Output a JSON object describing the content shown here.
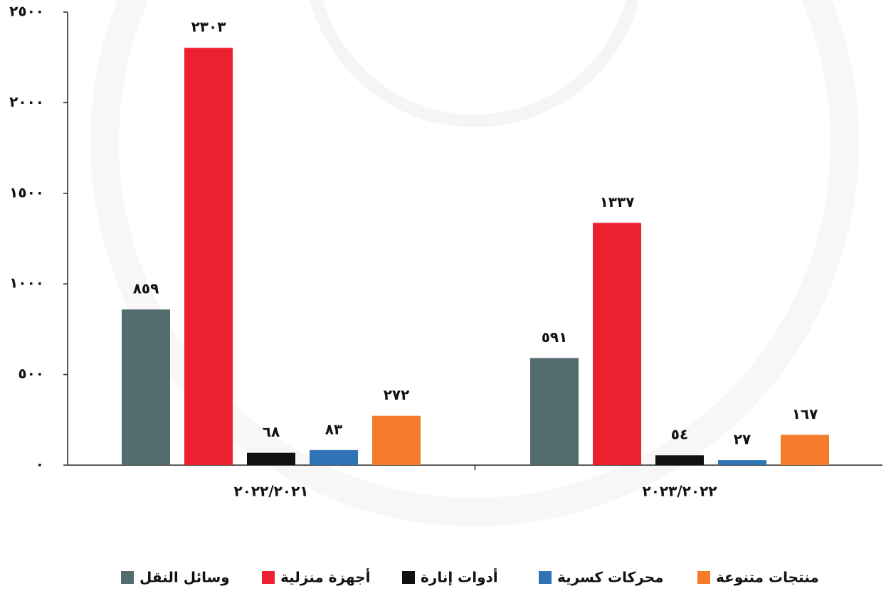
{
  "chart_data": {
    "type": "bar",
    "categories": [
      "٢٠٢٢/٢٠٢١",
      "٢٠٢٣/٢٠٢٢"
    ],
    "series": [
      {
        "name": "وسائل النقل",
        "color": "#546b6e",
        "values": [
          859,
          591
        ],
        "value_labels": [
          "٨٥٩",
          "٥٩١"
        ]
      },
      {
        "name": "أجهزة منزلية",
        "color": "#ed2030",
        "values": [
          2303,
          1337
        ],
        "value_labels": [
          "٢٣٠٣",
          "١٣٣٧"
        ]
      },
      {
        "name": "أدوات إنارة",
        "color": "#111111",
        "values": [
          68,
          54
        ],
        "value_labels": [
          "٦٨",
          "٥٤"
        ]
      },
      {
        "name": "محركات كسرية",
        "color": "#2f74b5",
        "values": [
          83,
          27
        ],
        "value_labels": [
          "٨٣",
          "٢٧"
        ]
      },
      {
        "name": "منتجات متنوعة",
        "color": "#f47b29",
        "values": [
          272,
          167
        ],
        "value_labels": [
          "٢٧٢",
          "١٦٧"
        ]
      }
    ],
    "ylim": [
      0,
      2500
    ],
    "yticks": [
      {
        "value": 0,
        "label": "٠"
      },
      {
        "value": 500,
        "label": "٥٠٠"
      },
      {
        "value": 1000,
        "label": "١٠٠٠"
      },
      {
        "value": 1500,
        "label": "١٥٠٠"
      },
      {
        "value": 2000,
        "label": "٢٠٠٠"
      },
      {
        "value": 2500,
        "label": "٢٥٠٠"
      }
    ],
    "legend": "bottom"
  }
}
